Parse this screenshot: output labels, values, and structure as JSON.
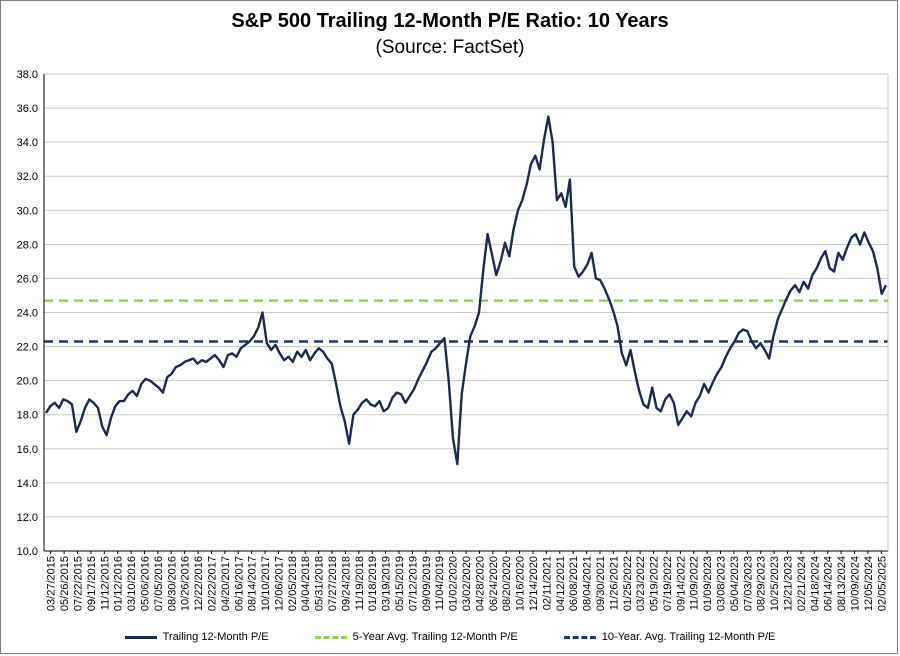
{
  "chart_data": {
    "type": "line",
    "title": "S&P 500 Trailing 12-Month P/E Ratio: 10 Years",
    "subtitle": "(Source: FactSet)",
    "xlabel": "",
    "ylabel": "",
    "ylim": [
      10.0,
      38.0
    ],
    "y_ticks": [
      "10.0",
      "12.0",
      "14.0",
      "16.0",
      "18.0",
      "20.0",
      "22.0",
      "24.0",
      "26.0",
      "28.0",
      "30.0",
      "32.0",
      "34.0",
      "36.0",
      "38.0"
    ],
    "x_ticks": [
      "03/27/2015",
      "05/26/2015",
      "07/22/2015",
      "09/17/2015",
      "11/12/2015",
      "01/12/2016",
      "03/10/2016",
      "05/06/2016",
      "07/05/2016",
      "08/30/2016",
      "10/26/2016",
      "12/22/2016",
      "02/22/2017",
      "04/20/2017",
      "06/16/2017",
      "08/14/2017",
      "10/10/2017",
      "12/06/2017",
      "02/05/2018",
      "04/04/2018",
      "05/31/2018",
      "07/27/2018",
      "09/24/2018",
      "11/19/2018",
      "01/18/2019",
      "03/19/2019",
      "05/15/2019",
      "07/12/2019",
      "09/09/2019",
      "11/04/2019",
      "01/02/2020",
      "03/02/2020",
      "04/28/2020",
      "06/24/2020",
      "08/20/2020",
      "10/16/2020",
      "12/14/2020",
      "02/11/2021",
      "04/12/2021",
      "06/08/2021",
      "08/04/2021",
      "09/30/2021",
      "11/26/2021",
      "01/25/2022",
      "03/23/2022",
      "05/19/2022",
      "07/19/2022",
      "09/14/2022",
      "11/09/2022",
      "01/09/2023",
      "03/08/2023",
      "05/04/2023",
      "07/03/2023",
      "08/29/2023",
      "10/25/2023",
      "12/21/2023",
      "02/21/2024",
      "04/18/2024",
      "06/14/2024",
      "08/13/2024",
      "10/09/2024",
      "12/05/2024",
      "02/05/2025"
    ],
    "series": [
      {
        "name": "Trailing 12-Month P/E",
        "color": "#1c2a4e",
        "style": "solid",
        "values": [
          18.1,
          18.5,
          18.7,
          18.4,
          18.9,
          18.8,
          18.6,
          17.0,
          17.6,
          18.4,
          18.9,
          18.7,
          18.4,
          17.3,
          16.8,
          17.8,
          18.5,
          18.8,
          18.8,
          19.2,
          19.4,
          19.1,
          19.8,
          20.1,
          20.0,
          19.8,
          19.6,
          19.3,
          20.2,
          20.4,
          20.8,
          20.9,
          21.1,
          21.2,
          21.3,
          21.0,
          21.2,
          21.1,
          21.3,
          21.5,
          21.2,
          20.8,
          21.5,
          21.6,
          21.4,
          21.9,
          22.1,
          22.3,
          22.6,
          23.1,
          24.0,
          22.2,
          21.8,
          22.1,
          21.6,
          21.2,
          21.4,
          21.1,
          21.7,
          21.4,
          21.8,
          21.2,
          21.6,
          21.9,
          21.7,
          21.3,
          21.0,
          19.8,
          18.5,
          17.6,
          16.3,
          18.0,
          18.3,
          18.7,
          18.9,
          18.6,
          18.5,
          18.8,
          18.2,
          18.4,
          19.0,
          19.3,
          19.2,
          18.7,
          19.1,
          19.5,
          20.1,
          20.6,
          21.1,
          21.7,
          21.9,
          22.2,
          22.5,
          20.0,
          16.6,
          15.1,
          19.2,
          21.0,
          22.6,
          23.2,
          24.0,
          26.5,
          28.6,
          27.4,
          26.2,
          27.0,
          28.1,
          27.3,
          28.9,
          30.0,
          30.6,
          31.5,
          32.7,
          33.2,
          32.4,
          34.1,
          35.5,
          34.0,
          30.6,
          31.0,
          30.2,
          31.8,
          26.7,
          26.1,
          26.4,
          26.8,
          27.5,
          26.0,
          25.9,
          25.4,
          24.8,
          24.1,
          23.2,
          21.6,
          20.9,
          21.8,
          20.5,
          19.4,
          18.6,
          18.4,
          19.6,
          18.4,
          18.2,
          18.9,
          19.2,
          18.7,
          17.4,
          17.8,
          18.2,
          17.9,
          18.7,
          19.1,
          19.8,
          19.3,
          19.9,
          20.4,
          20.8,
          21.4,
          21.9,
          22.3,
          22.8,
          23.0,
          22.9,
          22.3,
          21.9,
          22.2,
          21.8,
          21.3,
          22.6,
          23.6,
          24.2,
          24.8,
          25.3,
          25.6,
          25.2,
          25.8,
          25.4,
          26.2,
          26.6,
          27.2,
          27.6,
          26.6,
          26.4,
          27.5,
          27.1,
          27.8,
          28.4,
          28.6,
          28.0,
          28.7,
          28.1,
          27.6,
          26.6,
          25.1,
          25.6
        ]
      },
      {
        "name": "5-Year Avg. Trailing 12-Month P/E",
        "color": "#92d050",
        "style": "dashed",
        "value": 24.7
      },
      {
        "name": "10-Year. Avg. Trailing 12-Month P/E",
        "color": "#1f3864",
        "style": "dashed",
        "value": 22.3
      }
    ],
    "legend_position": "bottom",
    "grid": true
  }
}
